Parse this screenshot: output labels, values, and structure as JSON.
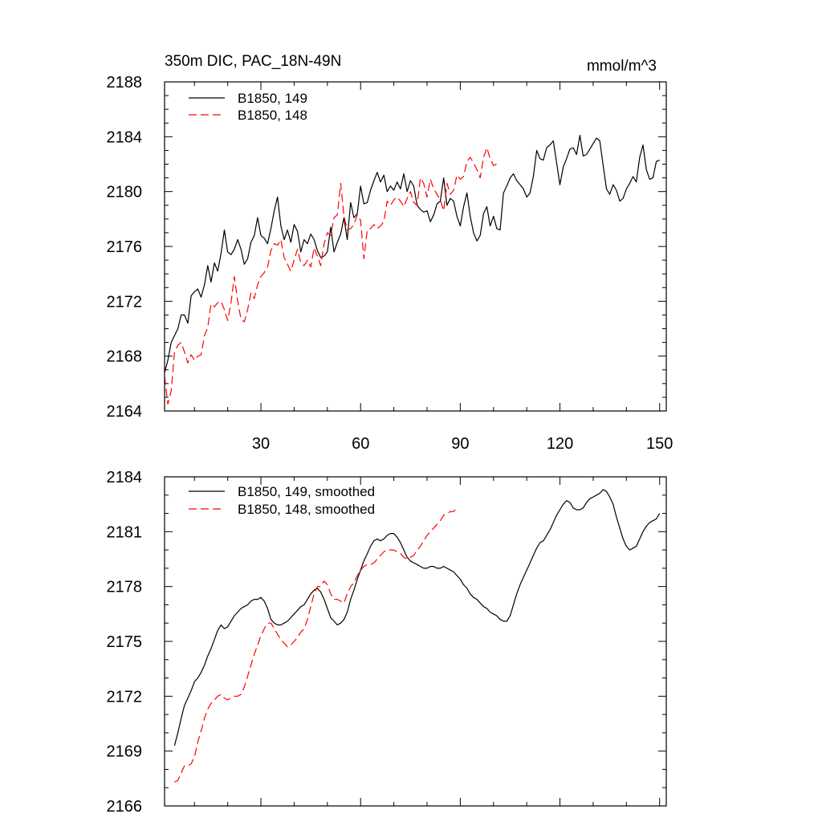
{
  "chart_data": [
    {
      "type": "line",
      "title": "350m DIC, PAC_18N-49N",
      "units": "mmol/m^3",
      "xlabel": "",
      "ylabel": "",
      "xlim": [
        1,
        152
      ],
      "ylim": [
        2164,
        2188
      ],
      "xticks": [
        30,
        60,
        90,
        120,
        150
      ],
      "yticks": [
        2164,
        2168,
        2172,
        2176,
        2180,
        2184,
        2188
      ],
      "legend_position": "top-left",
      "grid": false,
      "series": [
        {
          "name": "B1850, 149",
          "color": "#000000",
          "dash": "solid",
          "x_start": 1,
          "values": [
            2166.8,
            2167.7,
            2169.0,
            2169.5,
            2170.0,
            2171.0,
            2171.0,
            2170.4,
            2172.4,
            2172.7,
            2172.9,
            2172.3,
            2173.2,
            2174.6,
            2173.4,
            2174.8,
            2174.2,
            2175.5,
            2177.2,
            2175.6,
            2175.4,
            2175.8,
            2176.5,
            2175.8,
            2174.7,
            2175.1,
            2176.3,
            2176.8,
            2178.1,
            2176.8,
            2176.6,
            2176.2,
            2177.3,
            2178.6,
            2179.6,
            2177.5,
            2176.5,
            2177.2,
            2176.3,
            2177.6,
            2177.1,
            2175.6,
            2176.5,
            2176.2,
            2176.9,
            2176.5,
            2175.7,
            2175.2,
            2175.3,
            2175.6,
            2177.4,
            2175.6,
            2176.3,
            2176.9,
            2178.1,
            2176.5,
            2179.2,
            2178.1,
            2178.4,
            2180.4,
            2179.1,
            2179.2,
            2180.1,
            2180.8,
            2181.4,
            2180.7,
            2181.2,
            2180.0,
            2180.4,
            2180.1,
            2180.7,
            2180.2,
            2181.3,
            2180.0,
            2180.8,
            2180.4,
            2179.0,
            2178.7,
            2178.5,
            2178.6,
            2177.8,
            2178.3,
            2179.1,
            2179.3,
            2181.0,
            2179.0,
            2179.5,
            2179.3,
            2178.2,
            2177.5,
            2178.9,
            2179.9,
            2178.2,
            2177.0,
            2176.4,
            2176.8,
            2178.4,
            2178.9,
            2177.5,
            2178.2,
            2177.3,
            2177.2,
            2179.9,
            2180.4,
            2181.0,
            2181.3,
            2180.8,
            2180.5,
            2180.2,
            2179.6,
            2179.9,
            2181.1,
            2183.0,
            2182.4,
            2182.3,
            2183.2,
            2183.4,
            2183.7,
            2182.1,
            2180.5,
            2181.8,
            2182.4,
            2183.1,
            2183.2,
            2182.7,
            2184.1,
            2182.6,
            2182.7,
            2183.1,
            2183.5,
            2183.9,
            2183.7,
            2181.9,
            2180.2,
            2179.8,
            2180.5,
            2180.1,
            2179.3,
            2179.5,
            2180.2,
            2180.6,
            2181.1,
            2180.7,
            2182.5,
            2183.4,
            2181.6,
            2180.9,
            2181.0,
            2182.2,
            2182.3
          ]
        },
        {
          "name": "B1850, 148",
          "color": "#ff0000",
          "dash": "dashed",
          "x_start": 1,
          "values": [
            2166.5,
            2164.5,
            2165.5,
            2168.3,
            2168.8,
            2169.0,
            2168.3,
            2167.5,
            2168.1,
            2167.7,
            2168.0,
            2168.1,
            2169.5,
            2170.1,
            2171.8,
            2171.6,
            2171.9,
            2172.0,
            2171.4,
            2170.6,
            2171.9,
            2173.8,
            2172.0,
            2170.7,
            2170.5,
            2171.4,
            2172.6,
            2172.2,
            2173.2,
            2173.8,
            2174.1,
            2174.5,
            2175.7,
            2176.2,
            2176.1,
            2176.5,
            2175.2,
            2174.7,
            2174.2,
            2175.0,
            2175.8,
            2174.8,
            2174.6,
            2175.0,
            2174.5,
            2175.9,
            2175.3,
            2174.6,
            2176.2,
            2177.0,
            2176.8,
            2178.1,
            2178.3,
            2180.6,
            2178.2,
            2177.2,
            2177.3,
            2177.6,
            2178.3,
            2177.9,
            2175.1,
            2177.2,
            2177.3,
            2177.6,
            2177.3,
            2177.5,
            2177.8,
            2179.3,
            2179.0,
            2179.4,
            2179.6,
            2179.3,
            2178.9,
            2179.5,
            2180.0,
            2179.2,
            2179.0,
            2181.0,
            2180.6,
            2179.6,
            2180.9,
            2180.2,
            2179.8,
            2179.4,
            2178.6,
            2180.6,
            2179.8,
            2180.1,
            2181.2,
            2180.9,
            2181.1,
            2182.2,
            2182.5,
            2182.1,
            2181.6,
            2181.0,
            2182.5,
            2183.2,
            2182.4,
            2181.9,
            2182.0,
            2181.9
          ]
        }
      ]
    },
    {
      "type": "line",
      "title": "",
      "xlabel": "",
      "ylabel": "",
      "xlim": [
        1,
        152
      ],
      "ylim": [
        2166,
        2184
      ],
      "xticks": [
        30,
        60,
        90,
        120,
        150
      ],
      "yticks": [
        2166,
        2169,
        2172,
        2175,
        2178,
        2181,
        2184
      ],
      "legend_position": "top-left",
      "grid": false,
      "series": [
        {
          "name": "B1850, 149, smoothed",
          "color": "#000000",
          "dash": "solid",
          "x_start": 4,
          "values": [
            2169.3,
            2170.0,
            2170.8,
            2171.5,
            2171.9,
            2172.3,
            2172.8,
            2173.0,
            2173.3,
            2173.7,
            2174.2,
            2174.6,
            2175.1,
            2175.6,
            2175.9,
            2175.7,
            2175.8,
            2176.1,
            2176.4,
            2176.6,
            2176.8,
            2176.9,
            2177.0,
            2177.2,
            2177.3,
            2177.3,
            2177.4,
            2177.2,
            2176.8,
            2176.2,
            2176.0,
            2175.9,
            2175.9,
            2176.0,
            2176.1,
            2176.3,
            2176.5,
            2176.7,
            2176.9,
            2177.0,
            2177.3,
            2177.6,
            2177.8,
            2177.9,
            2177.7,
            2177.3,
            2176.8,
            2176.3,
            2176.1,
            2175.9,
            2176.0,
            2176.2,
            2176.6,
            2177.3,
            2177.8,
            2178.4,
            2178.9,
            2179.4,
            2179.8,
            2180.2,
            2180.5,
            2180.6,
            2180.5,
            2180.6,
            2180.8,
            2180.9,
            2180.9,
            2180.7,
            2180.4,
            2180.0,
            2179.6,
            2179.4,
            2179.3,
            2179.2,
            2179.1,
            2179.0,
            2179.0,
            2179.1,
            2179.1,
            2179.0,
            2179.0,
            2179.1,
            2179.0,
            2178.9,
            2178.8,
            2178.6,
            2178.4,
            2178.1,
            2177.9,
            2177.6,
            2177.4,
            2177.3,
            2177.1,
            2176.9,
            2176.8,
            2176.6,
            2176.5,
            2176.4,
            2176.2,
            2176.1,
            2176.1,
            2176.4,
            2177.0,
            2177.6,
            2178.1,
            2178.5,
            2178.9,
            2179.3,
            2179.7,
            2180.1,
            2180.4,
            2180.5,
            2180.8,
            2181.1,
            2181.5,
            2181.9,
            2182.2,
            2182.5,
            2182.7,
            2182.6,
            2182.3,
            2182.2,
            2182.2,
            2182.3,
            2182.6,
            2182.8,
            2182.9,
            2183.0,
            2183.1,
            2183.3,
            2183.2,
            2182.9,
            2182.5,
            2181.8,
            2181.2,
            2180.6,
            2180.2,
            2180.0,
            2180.1,
            2180.2,
            2180.6,
            2181.0,
            2181.3,
            2181.5,
            2181.6,
            2181.7,
            2182.0
          ]
        },
        {
          "name": "B1850, 148, smoothed",
          "color": "#ff0000",
          "dash": "dashed",
          "x_start": 4,
          "values": [
            2167.3,
            2167.4,
            2167.8,
            2168.2,
            2168.2,
            2168.3,
            2168.7,
            2169.5,
            2170.1,
            2170.8,
            2171.3,
            2171.6,
            2171.8,
            2172.0,
            2172.1,
            2171.9,
            2171.8,
            2171.9,
            2172.0,
            2172.0,
            2172.1,
            2172.5,
            2173.1,
            2173.7,
            2174.3,
            2174.8,
            2175.3,
            2175.7,
            2176.0,
            2176.0,
            2175.7,
            2175.4,
            2175.1,
            2174.9,
            2174.7,
            2174.8,
            2175.0,
            2175.2,
            2175.5,
            2175.7,
            2176.2,
            2176.9,
            2177.6,
            2178.0,
            2178.0,
            2178.3,
            2178.1,
            2177.6,
            2177.3,
            2177.3,
            2177.2,
            2177.1,
            2177.6,
            2178.0,
            2178.2,
            2178.6,
            2178.9,
            2179.1,
            2179.2,
            2179.2,
            2179.3,
            2179.5,
            2179.7,
            2179.9,
            2180.0,
            2180.0,
            2180.0,
            2179.9,
            2179.8,
            2179.6,
            2179.5,
            2179.6,
            2179.7,
            2180.0,
            2180.2,
            2180.5,
            2180.8,
            2181.0,
            2181.2,
            2181.4,
            2181.6,
            2181.9,
            2182.0,
            2182.1,
            2182.1,
            2182.3
          ]
        }
      ]
    }
  ]
}
